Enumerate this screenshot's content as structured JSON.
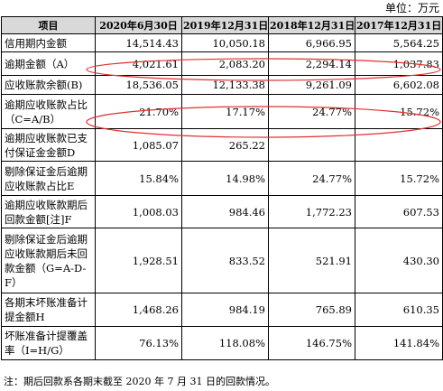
{
  "unit_label": "单位：万元",
  "headers": [
    "项目",
    "2020年6月30日",
    "2019年12月31日",
    "2018年12月31日",
    "2017年12月31日"
  ],
  "rows": [
    {
      "label": "信用期内金额",
      "values": [
        "14,514.43",
        "10,050.18",
        "6,966.95",
        "5,564.25"
      ]
    },
    {
      "label": "逾期金额（A）",
      "values": [
        "4,021.61",
        "2,083.20",
        "2,294.14",
        "1,037.83"
      ]
    },
    {
      "label": "应收账款余额(B)",
      "values": [
        "18,536.05",
        "12,133.38",
        "9,261.09",
        "6,602.08"
      ]
    },
    {
      "label": "逾期应收账款占比（C=A/B）",
      "values": [
        "21.70%",
        "17.17%",
        "24.77%",
        "15.72%"
      ]
    },
    {
      "label": "逾期应收账款已支付保证金金额D",
      "values": [
        "1,085.07",
        "265.22",
        "",
        ""
      ]
    },
    {
      "label": "剔除保证金后逾期应收账款占比E",
      "values": [
        "15.84%",
        "14.98%",
        "24.77%",
        "15.72%"
      ]
    },
    {
      "label": "逾期应收账款期后回款金额[注]F",
      "values": [
        "1,008.03",
        "984.46",
        "1,772.23",
        "607.53"
      ]
    },
    {
      "label": "剔除保证金后逾期应收账款期后未回款金额（G=A-D-F）",
      "values": [
        "1,928.51",
        "833.52",
        "521.91",
        "430.30"
      ]
    },
    {
      "label": "各期末坏账准备计提金额H",
      "values": [
        "1,468.26",
        "984.19",
        "765.89",
        "610.35"
      ]
    },
    {
      "label": "坏账准备计提覆盖率（I=H/G）",
      "values": [
        "76.13%",
        "118.08%",
        "146.75%",
        "141.84%"
      ]
    }
  ],
  "footnote": "注：期后回款系各期末截至 2020 年 7 月 31 日的回款情况。",
  "colors": {
    "header_bg": "#d9d9d9",
    "highlight_oval": "#e03030"
  }
}
